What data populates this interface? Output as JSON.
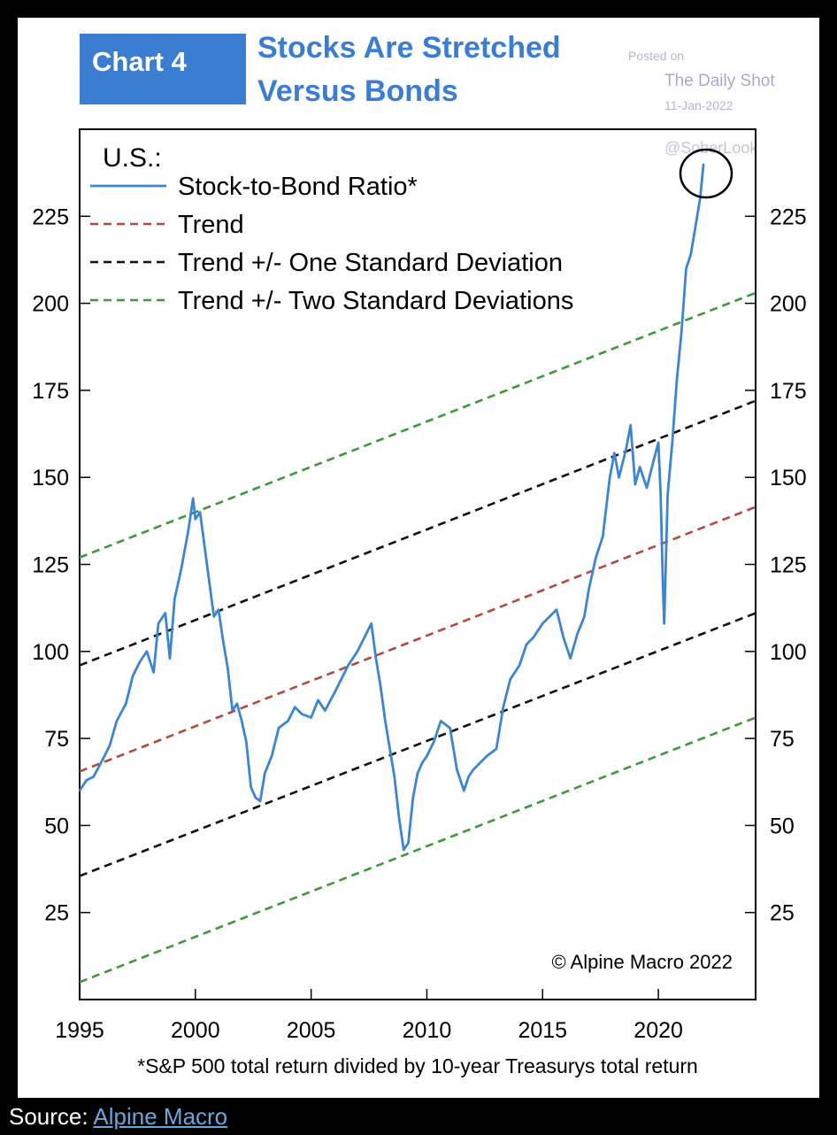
{
  "header": {
    "chart_number": "Chart 4",
    "title_line1": "Stocks Are Stretched",
    "title_line2": "Versus Bonds"
  },
  "watermark": {
    "posted_on": "Posted on",
    "site": "The Daily Shot",
    "date": "11-Jan-2022",
    "handle": "@SoberLook"
  },
  "footnote": "*S&P 500 total return divided by 10-year Treasurys total return",
  "copyright": "© Alpine Macro 2022",
  "source": {
    "label": "Source:",
    "link_text": "Alpine Macro"
  },
  "colors": {
    "header_box": "#3b7dd0",
    "header_text": "#3b7dd0",
    "ratio_line": "#3d85d0",
    "trend": "#b24a3f",
    "one_sd": "#111111",
    "two_sd": "#3c9a38"
  },
  "chart_data": {
    "type": "line",
    "region_label": "U.S.:",
    "xlim": [
      1995,
      2024.2
    ],
    "ylim": [
      0,
      250
    ],
    "x_ticks": [
      1995,
      2000,
      2005,
      2010,
      2015,
      2020
    ],
    "y_ticks": [
      25,
      50,
      75,
      100,
      125,
      150,
      175,
      200,
      225
    ],
    "legend": [
      {
        "name": "Stock-to-Bond Ratio*",
        "style": "solid",
        "color": "#3d85d0"
      },
      {
        "name": "Trend",
        "style": "dashed",
        "color": "#b24a3f"
      },
      {
        "name": "Trend +/- One Standard Deviation",
        "style": "dashed",
        "color": "#111111"
      },
      {
        "name": "Trend +/- Two Standard Deviations",
        "style": "dashed",
        "color": "#3c9a38"
      }
    ],
    "trend_lines": [
      {
        "name": "Trend",
        "x": [
          1995,
          2024.2
        ],
        "y": [
          65.5,
          141.5
        ]
      },
      {
        "name": "Trend +/- One Standard Deviation",
        "x": [
          1995,
          2024.2
        ],
        "y": [
          96,
          172
        ]
      },
      {
        "name": "Trend +/- One Standard Deviation",
        "x": [
          1995,
          2024.2
        ],
        "y": [
          35.5,
          111
        ]
      },
      {
        "name": "Trend +/- Two Standard Deviations",
        "x": [
          1995,
          2024.2
        ],
        "y": [
          127,
          203
        ]
      },
      {
        "name": "Trend +/- Two Standard Deviations",
        "x": [
          1995,
          2024.2
        ],
        "y": [
          5,
          81
        ]
      }
    ],
    "series": [
      {
        "name": "Stock-to-Bond Ratio*",
        "x": [
          1995,
          1995.3,
          1995.6,
          1996,
          1996.3,
          1996.6,
          1997,
          1997.3,
          1997.6,
          1997.9,
          1998.2,
          1998.4,
          1998.7,
          1998.9,
          1999.1,
          1999.4,
          1999.7,
          1999.9,
          2000.0,
          2000.2,
          2000.4,
          2000.6,
          2000.8,
          2001.0,
          2001.2,
          2001.4,
          2001.6,
          2001.8,
          2002.0,
          2002.2,
          2002.4,
          2002.6,
          2002.8,
          2003.0,
          2003.3,
          2003.6,
          2004.0,
          2004.3,
          2004.6,
          2005.0,
          2005.3,
          2005.6,
          2006.0,
          2006.3,
          2006.6,
          2007.0,
          2007.3,
          2007.6,
          2007.8,
          2008.0,
          2008.2,
          2008.4,
          2008.6,
          2008.8,
          2009.0,
          2009.2,
          2009.4,
          2009.6,
          2009.8,
          2010.0,
          2010.3,
          2010.6,
          2011.0,
          2011.3,
          2011.6,
          2011.8,
          2012.0,
          2012.3,
          2012.6,
          2013.0,
          2013.3,
          2013.6,
          2014.0,
          2014.3,
          2014.6,
          2015.0,
          2015.3,
          2015.6,
          2015.9,
          2016.2,
          2016.5,
          2016.8,
          2017.0,
          2017.3,
          2017.6,
          2017.9,
          2018.1,
          2018.3,
          2018.6,
          2018.8,
          2019.0,
          2019.2,
          2019.5,
          2019.8,
          2020.0,
          2020.1,
          2020.2,
          2020.25,
          2020.4,
          2020.6,
          2020.8,
          2021.0,
          2021.2,
          2021.4,
          2021.6,
          2021.8,
          2021.95
        ],
        "y": [
          60,
          63,
          64,
          69,
          73,
          80,
          85,
          93,
          97,
          100,
          94,
          108,
          111,
          98,
          115,
          124,
          135,
          144,
          138,
          140,
          130,
          120,
          110,
          112,
          103,
          95,
          83,
          85,
          80,
          74,
          61,
          58,
          57,
          65,
          70,
          78,
          80,
          84,
          82,
          81,
          86,
          83,
          88,
          92,
          96,
          100,
          104,
          108,
          98,
          90,
          80,
          72,
          64,
          52,
          43,
          45,
          58,
          65,
          68,
          70,
          74,
          80,
          78,
          66,
          60,
          64,
          66,
          68,
          70,
          72,
          84,
          92,
          96,
          102,
          104,
          108,
          110,
          112,
          104,
          98,
          105,
          110,
          118,
          127,
          133,
          150,
          157,
          150,
          158,
          165,
          148,
          153,
          147,
          155,
          160,
          145,
          118,
          108,
          145,
          160,
          178,
          192,
          210,
          214,
          222,
          230,
          240
        ]
      }
    ]
  }
}
